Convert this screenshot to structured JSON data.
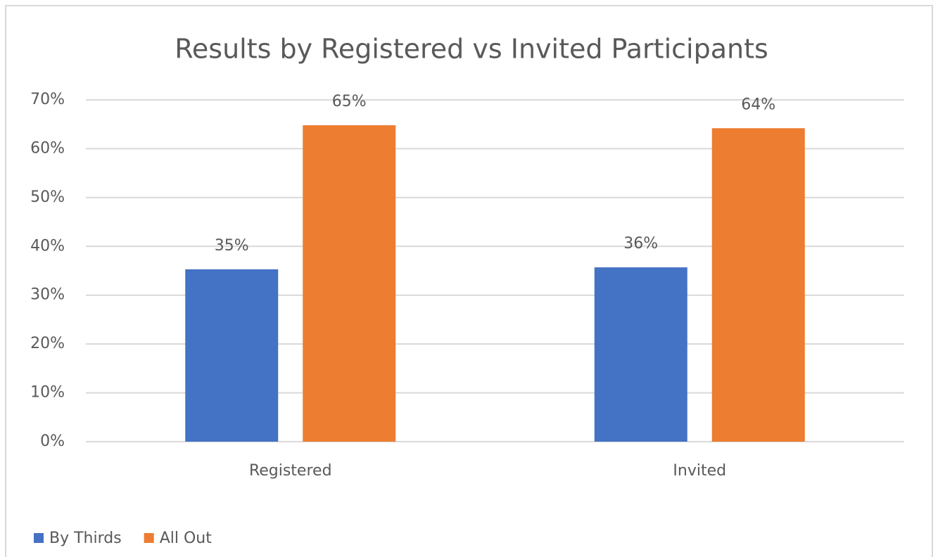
{
  "chart_data": {
    "type": "bar",
    "title": "Results by Registered vs Invited Participants",
    "categories": [
      "Registered",
      "Invited"
    ],
    "series": [
      {
        "name": "By Thirds",
        "color": "#4472c4",
        "values": [
          35.3,
          35.7
        ],
        "value_labels": [
          "35%",
          "36%"
        ]
      },
      {
        "name": "All Out",
        "color": "#ed7d31",
        "values": [
          64.8,
          64.2
        ],
        "value_labels": [
          "65%",
          "64%"
        ]
      }
    ],
    "ylim": [
      0,
      70
    ],
    "yticks": [
      {
        "value": 0,
        "label": "0%"
      },
      {
        "value": 10,
        "label": "10%"
      },
      {
        "value": 20,
        "label": "20%"
      },
      {
        "value": 30,
        "label": "30%"
      },
      {
        "value": 40,
        "label": "40%"
      },
      {
        "value": 50,
        "label": "50%"
      },
      {
        "value": 60,
        "label": "60%"
      },
      {
        "value": 70,
        "label": "70%"
      }
    ],
    "grid": true,
    "legend": "bottom-left"
  }
}
